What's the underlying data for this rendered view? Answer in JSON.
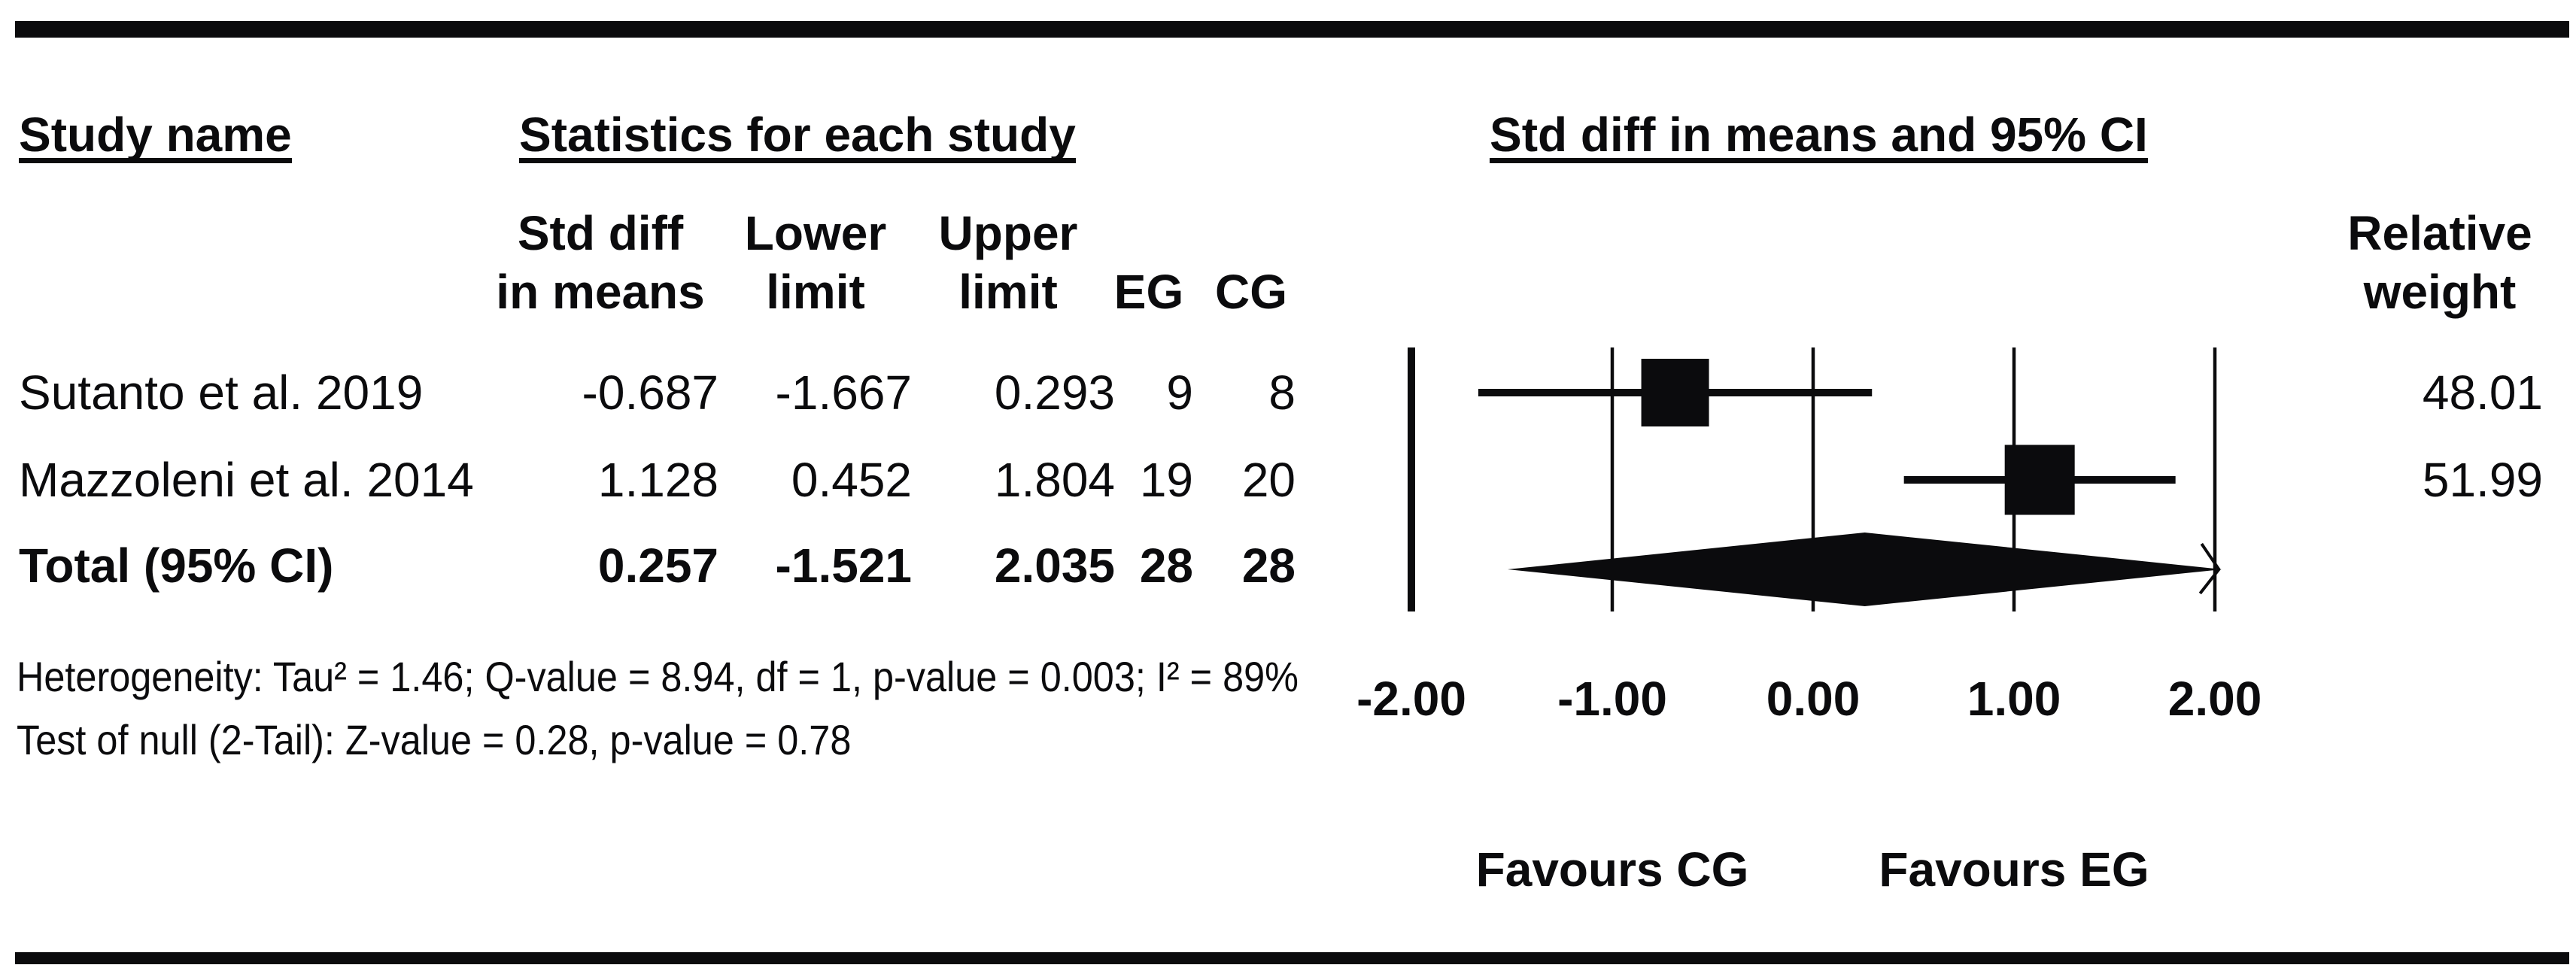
{
  "headers": {
    "study_name": "Study name",
    "statistics": "Statistics for each study",
    "plot": "Std diff in means and 95% CI",
    "std_diff_l1": "Std diff",
    "std_diff_l2": "in means",
    "lower_l1": "Lower",
    "lower_l2": "limit",
    "upper_l1": "Upper",
    "upper_l2": "limit",
    "eg": "EG",
    "cg": "CG",
    "weight_l1": "Relative",
    "weight_l2": "weight"
  },
  "rows": [
    {
      "name": "Sutanto et al. 2019",
      "std_diff": "-0.687",
      "lower": "-1.667",
      "upper": "0.293",
      "eg": "9",
      "cg": "8",
      "weight": "48.01"
    },
    {
      "name": "Mazzoleni et al. 2014",
      "std_diff": "1.128",
      "lower": "0.452",
      "upper": "1.804",
      "eg": "19",
      "cg": "20",
      "weight": "51.99"
    }
  ],
  "total_row": {
    "name": "Total (95% CI)",
    "std_diff": "0.257",
    "lower": "-1.521",
    "upper": "2.035",
    "eg": "28",
    "cg": "28"
  },
  "footnotes": {
    "line1": "Heterogeneity: Tau² = 1.46; Q-value = 8.94, df = 1, p-value = 0.003; I² = 89%",
    "line2": "Test of null (2-Tail): Z-value = 0.28, p-value = 0.78"
  },
  "axis": {
    "tick_labels": [
      "-2.00",
      "-1.00",
      "0.00",
      "1.00",
      "2.00"
    ],
    "favours_left": "Favours CG",
    "favours_right": "Favours EG"
  },
  "colors": {
    "ink": "#0b0b0d",
    "background": "#ffffff"
  },
  "chart_data": {
    "type": "forest",
    "title": "Std diff in means and 95% CI",
    "effect_measure": "Std diff in means",
    "x_ticks": [
      -2.0,
      -1.0,
      0.0,
      1.0,
      2.0
    ],
    "x_tick_labels": [
      "-2.00",
      "-1.00",
      "0.00",
      "1.00",
      "2.00"
    ],
    "xlim": [
      -2.0,
      2.0
    ],
    "favours_left": "Favours CG",
    "favours_right": "Favours EG",
    "studies": [
      {
        "name": "Sutanto et al. 2019",
        "mean": -0.687,
        "lower": -1.667,
        "upper": 0.293,
        "eg": 9,
        "cg": 8,
        "relative_weight": 48.01
      },
      {
        "name": "Mazzoleni et al. 2014",
        "mean": 1.128,
        "lower": 0.452,
        "upper": 1.804,
        "eg": 19,
        "cg": 20,
        "relative_weight": 51.99
      }
    ],
    "total": {
      "name": "Total (95% CI)",
      "mean": 0.257,
      "lower": -1.521,
      "upper": 2.035,
      "eg": 28,
      "cg": 28
    },
    "heterogeneity": {
      "tau2": 1.46,
      "q_value": 8.94,
      "df": 1,
      "p_value": 0.003,
      "i2_percent": 89
    },
    "test_of_null": {
      "z_value": 0.28,
      "p_value": 0.78
    }
  }
}
